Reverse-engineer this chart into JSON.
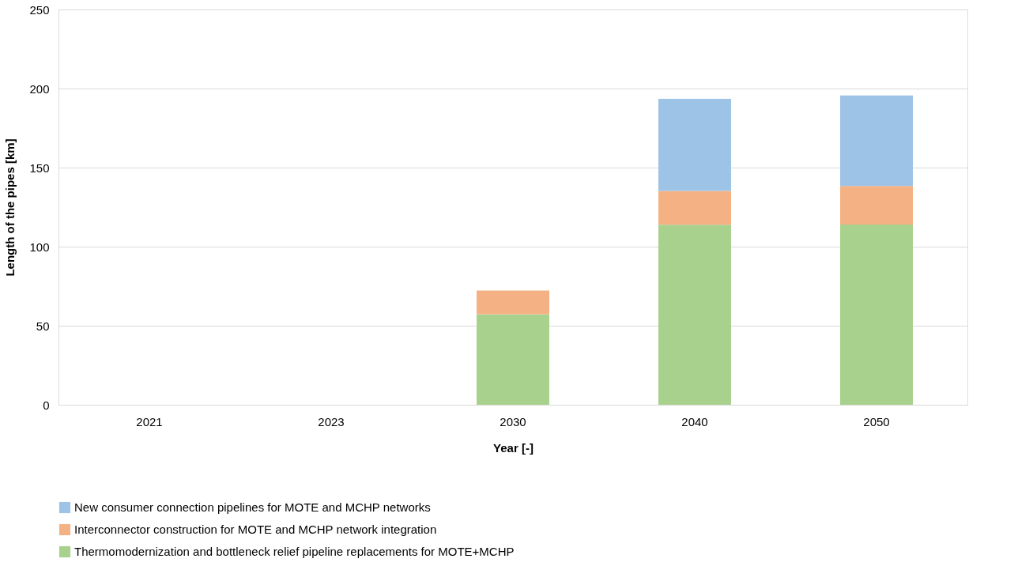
{
  "chart_data": {
    "type": "bar",
    "stacked": true,
    "xlabel": "Year [-]",
    "ylabel": "Length of the pipes [km]",
    "categories": [
      "2021",
      "2023",
      "2030",
      "2040",
      "2050"
    ],
    "series": [
      {
        "name": "Thermomodernization and bottleneck relief pipeline replacements for MOTE+MCHP",
        "color": "#a9d18e",
        "values": [
          0,
          0,
          57.2,
          113.9,
          114
        ]
      },
      {
        "name": "Interconnector construction for MOTE and MCHP network integration",
        "color": "#f4b183",
        "values": [
          0,
          0,
          15,
          21.4,
          24.4
        ]
      },
      {
        "name": "New consumer connection pipelines for MOTE and MCHP networks",
        "color": "#9dc3e6",
        "values": [
          0,
          0,
          0,
          58.2,
          57.2
        ]
      }
    ],
    "ylim": [
      0,
      250
    ],
    "yticks": [
      0,
      50,
      100,
      150,
      200,
      250
    ],
    "grid": "y",
    "legend": "bottom"
  }
}
